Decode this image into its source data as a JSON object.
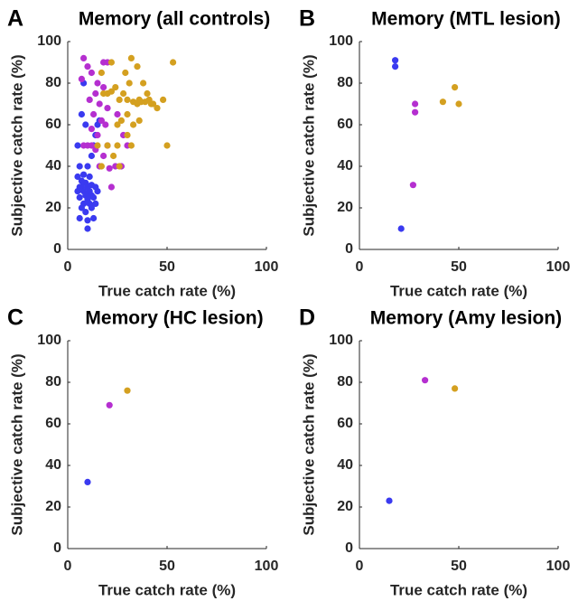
{
  "chart_data": [
    {
      "type": "scatter",
      "panel": "A",
      "title": "Memory (all controls)",
      "xlabel": "True catch rate (%)",
      "ylabel": "Subjective catch rate (%)",
      "xlim": [
        0,
        100
      ],
      "ylim": [
        0,
        100
      ],
      "xticks": [
        0,
        50,
        100
      ],
      "yticks": [
        0,
        20,
        40,
        60,
        80,
        100
      ],
      "series": [
        {
          "color": "#3a3af0",
          "x": [
            5,
            6,
            5,
            7,
            8,
            6,
            9,
            10,
            11,
            12,
            8,
            7,
            9,
            10,
            6,
            12,
            13,
            14,
            15,
            11,
            10,
            12,
            13,
            14,
            15,
            16,
            9,
            7,
            8,
            10,
            13,
            11,
            5,
            7,
            9,
            12,
            14,
            8,
            6,
            10
          ],
          "values": [
            50,
            40,
            35,
            30,
            28,
            25,
            32,
            30,
            28,
            26,
            22,
            20,
            18,
            14,
            15,
            20,
            25,
            30,
            28,
            35,
            40,
            45,
            50,
            55,
            60,
            62,
            60,
            65,
            80,
            10,
            15,
            22,
            28,
            33,
            26,
            31,
            22,
            36,
            30,
            24
          ]
        },
        {
          "color": "#b52fd0",
          "x": [
            8,
            10,
            12,
            7,
            15,
            18,
            14,
            11,
            16,
            20,
            13,
            17,
            19,
            12,
            15,
            8,
            10,
            20,
            14,
            18,
            16,
            21,
            24,
            22,
            18,
            20,
            25,
            28,
            30,
            12,
            27
          ],
          "values": [
            92,
            88,
            85,
            82,
            80,
            78,
            75,
            72,
            70,
            68,
            65,
            62,
            60,
            58,
            55,
            50,
            50,
            50,
            48,
            45,
            40,
            39,
            40,
            30,
            90,
            90,
            65,
            55,
            50,
            50,
            40
          ]
        },
        {
          "color": "#d4a020",
          "x": [
            22,
            32,
            35,
            38,
            40,
            42,
            45,
            48,
            53,
            50,
            30,
            33,
            35,
            36,
            39,
            41,
            43,
            26,
            28,
            24,
            20,
            22,
            17,
            18,
            25,
            27,
            30,
            32,
            20,
            15,
            25,
            30,
            33,
            36,
            26,
            23,
            17,
            31,
            29,
            37
          ],
          "values": [
            90,
            92,
            88,
            80,
            75,
            70,
            68,
            72,
            90,
            50,
            72,
            71,
            70,
            72,
            71,
            72,
            70,
            72,
            75,
            78,
            75,
            76,
            85,
            75,
            60,
            62,
            55,
            50,
            50,
            50,
            50,
            65,
            60,
            62,
            40,
            45,
            40,
            80,
            85,
            71
          ]
        }
      ]
    },
    {
      "type": "scatter",
      "panel": "B",
      "title": "Memory (MTL lesion)",
      "xlabel": "True catch rate (%)",
      "ylabel": "Subjective catch rate (%)",
      "xlim": [
        0,
        100
      ],
      "ylim": [
        0,
        100
      ],
      "xticks": [
        0,
        50,
        100
      ],
      "yticks": [
        0,
        20,
        40,
        60,
        80,
        100
      ],
      "series": [
        {
          "color": "#3a3af0",
          "x": [
            18,
            18,
            21
          ],
          "values": [
            91,
            88,
            10
          ]
        },
        {
          "color": "#b52fd0",
          "x": [
            28,
            28,
            27
          ],
          "values": [
            70,
            66,
            31
          ]
        },
        {
          "color": "#d4a020",
          "x": [
            42,
            48,
            50
          ],
          "values": [
            71,
            78,
            70
          ]
        }
      ]
    },
    {
      "type": "scatter",
      "panel": "C",
      "title": "Memory (HC lesion)",
      "xlabel": "True catch rate (%)",
      "ylabel": "Subjective catch rate (%)",
      "xlim": [
        0,
        100
      ],
      "ylim": [
        0,
        100
      ],
      "xticks": [
        0,
        50,
        100
      ],
      "yticks": [
        0,
        20,
        40,
        60,
        80,
        100
      ],
      "series": [
        {
          "color": "#3a3af0",
          "x": [
            10
          ],
          "values": [
            32
          ]
        },
        {
          "color": "#b52fd0",
          "x": [
            21
          ],
          "values": [
            69
          ]
        },
        {
          "color": "#d4a020",
          "x": [
            30
          ],
          "values": [
            76
          ]
        }
      ]
    },
    {
      "type": "scatter",
      "panel": "D",
      "title": "Memory (Amy lesion)",
      "xlabel": "True catch rate (%)",
      "ylabel": "Subjective catch rate (%)",
      "xlim": [
        0,
        100
      ],
      "ylim": [
        0,
        100
      ],
      "xticks": [
        0,
        50,
        100
      ],
      "yticks": [
        0,
        20,
        40,
        60,
        80,
        100
      ],
      "series": [
        {
          "color": "#3a3af0",
          "x": [
            15
          ],
          "values": [
            23
          ]
        },
        {
          "color": "#b52fd0",
          "x": [
            33
          ],
          "values": [
            81
          ]
        },
        {
          "color": "#d4a020",
          "x": [
            48
          ],
          "values": [
            77
          ]
        }
      ]
    }
  ]
}
